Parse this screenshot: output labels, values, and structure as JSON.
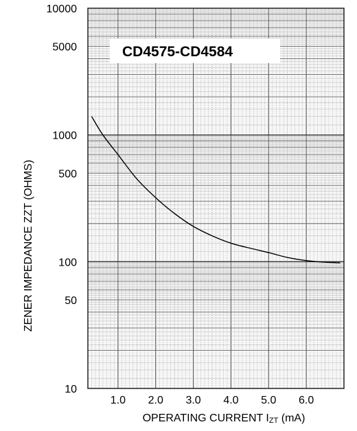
{
  "chart_data": {
    "type": "line",
    "title": "CD4575-CD4584",
    "ylabel": "ZENER IMPEDANCE ZZT (OHMS)",
    "xlabel": {
      "prefix": "OPERATING CURRENT I",
      "subscript": "ZT",
      "suffix": " (mA)"
    },
    "y_scale": "log",
    "ylim": [
      10,
      10000
    ],
    "xlim": [
      0.2,
      7.0
    ],
    "y_ticks": [
      10000,
      5000,
      1000,
      500,
      100,
      50,
      10
    ],
    "x_ticks": [
      "1.0",
      "2.0",
      "3.0",
      "4.0",
      "5.0",
      "6.0"
    ],
    "grid": true,
    "series": [
      {
        "x": [
          0.3,
          0.6,
          1.0,
          1.5,
          2.0,
          2.5,
          3.0,
          3.5,
          4.0,
          4.5,
          5.0,
          5.5,
          6.0,
          6.5,
          6.9
        ],
        "y": [
          1400,
          1000,
          700,
          450,
          320,
          240,
          190,
          160,
          140,
          128,
          118,
          108,
          102,
          99,
          98
        ]
      }
    ]
  }
}
